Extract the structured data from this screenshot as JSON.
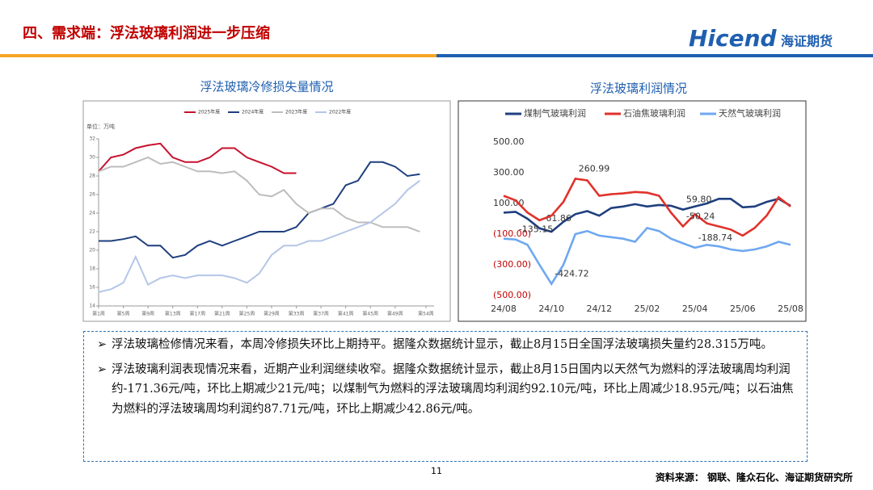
{
  "header": {
    "title": "四、需求端：浮法玻璃利润进一步压缩",
    "logo": "Hicend",
    "logo_cn": "海证期货"
  },
  "chart_data": [
    {
      "type": "line",
      "title": "浮法玻璃冷修损失量情况",
      "unit": "单位：万吨",
      "grid": false,
      "x": [
        1,
        3,
        5,
        7,
        9,
        11,
        13,
        15,
        17,
        19,
        21,
        23,
        25,
        27,
        29,
        31,
        33,
        35,
        37,
        39,
        41,
        43,
        45,
        47,
        49,
        51,
        53
      ],
      "xlim": [
        1,
        54
      ],
      "xticks": [
        {
          "value": 1,
          "label": "第1周"
        },
        {
          "value": 5,
          "label": "第5周"
        },
        {
          "value": 9,
          "label": "第9周"
        },
        {
          "value": 13,
          "label": "第13周"
        },
        {
          "value": 17,
          "label": "第17周"
        },
        {
          "value": 21,
          "label": "第21周"
        },
        {
          "value": 25,
          "label": "第25周"
        },
        {
          "value": 29,
          "label": "第29周"
        },
        {
          "value": 33,
          "label": "第33周"
        },
        {
          "value": 37,
          "label": "第37周"
        },
        {
          "value": 41,
          "label": "第41周"
        },
        {
          "value": 45,
          "label": "第45周"
        },
        {
          "value": 49,
          "label": "第49周"
        },
        {
          "value": 54,
          "label": "第54周"
        }
      ],
      "ylim": [
        14,
        32
      ],
      "yticks": [
        14,
        16,
        18,
        20,
        22,
        24,
        26,
        28,
        30,
        32
      ],
      "series": [
        {
          "name": "2025年度",
          "color": "#c8102e",
          "values": [
            28.5,
            30,
            30.3,
            31,
            31.3,
            31.5,
            30,
            29.5,
            29.5,
            30,
            31,
            31,
            30,
            29.5,
            29,
            28.3,
            28.3,
            null,
            null,
            null,
            null,
            null,
            null,
            null,
            null,
            null,
            null
          ]
        },
        {
          "name": "2024年度",
          "color": "#1f3f7f",
          "values": [
            21,
            21,
            21.2,
            21.5,
            20.5,
            20.5,
            19.2,
            19.5,
            20.5,
            21,
            20.5,
            21,
            21.5,
            22,
            22,
            22,
            22.5,
            24,
            24.5,
            25,
            27,
            27.5,
            29.5,
            29.5,
            29,
            28,
            28.2
          ]
        },
        {
          "name": "2023年度",
          "color": "#bdbdbd",
          "values": [
            28.5,
            29,
            29,
            29.5,
            30,
            29.3,
            29.5,
            29,
            28.5,
            28.5,
            28.3,
            28.5,
            27.5,
            26,
            25.8,
            26.5,
            25,
            24,
            24.5,
            24.5,
            23.5,
            23,
            23,
            22.5,
            22.5,
            22.5,
            22
          ]
        },
        {
          "name": "2022年度",
          "color": "#b4c6e7",
          "values": [
            15.5,
            15.8,
            16.5,
            19.3,
            16.3,
            17,
            17.3,
            17,
            17.3,
            17.3,
            17.3,
            17,
            16.5,
            17.5,
            19.5,
            20.5,
            20.5,
            21,
            21,
            21.5,
            22,
            22.5,
            23,
            24,
            25,
            26.5,
            27.5
          ]
        }
      ]
    },
    {
      "type": "line",
      "title": "浮法玻璃利润情况",
      "grid": false,
      "negative_tick_color": "#c00000",
      "categories": [
        "24/08",
        null,
        null,
        null,
        "24/10",
        null,
        null,
        null,
        "24/12",
        null,
        null,
        null,
        "25/02",
        null,
        null,
        null,
        "25/04",
        null,
        null,
        null,
        "25/06",
        null,
        null,
        null,
        "25/08"
      ],
      "ylim": [
        -500,
        500
      ],
      "yticks": [
        {
          "value": -500,
          "label": "(500.00)"
        },
        {
          "value": -300,
          "label": "(300.00)"
        },
        {
          "value": -100,
          "label": "(100.00)"
        },
        {
          "value": 100,
          "label": "100.00"
        },
        {
          "value": 300,
          "label": "300.00"
        },
        {
          "value": 500,
          "label": "500.00"
        }
      ],
      "series": [
        {
          "name": "煤制气玻璃利润",
          "color": "#1f3f7f",
          "values": [
            40,
            45,
            0,
            -61.86,
            -85,
            -20,
            30,
            50,
            20,
            70,
            80,
            95,
            80,
            90,
            85,
            59.8,
            80,
            100,
            130,
            130,
            75,
            80,
            110,
            130,
            85
          ],
          "value_labels": [
            null,
            null,
            null,
            "-61.86",
            null,
            null,
            null,
            null,
            null,
            null,
            null,
            null,
            null,
            null,
            null,
            "59.80",
            null,
            null,
            null,
            null,
            null,
            null,
            null,
            null,
            null
          ]
        },
        {
          "name": "石油焦玻璃利润",
          "color": "#e0322b",
          "values": [
            150,
            120,
            40,
            -10,
            20,
            110,
            260.99,
            250,
            150,
            160,
            165,
            175,
            170,
            150,
            40,
            -50.24,
            30,
            -30,
            -50,
            -70,
            -110,
            -60,
            20,
            140,
            80
          ],
          "value_labels": [
            null,
            null,
            null,
            null,
            null,
            null,
            "260.99",
            null,
            null,
            null,
            null,
            null,
            null,
            null,
            null,
            "-50.24",
            null,
            null,
            null,
            null,
            null,
            null,
            null,
            null,
            null
          ]
        },
        {
          "name": "天然气玻璃利润",
          "color": "#6fa8f0",
          "values": [
            -130,
            -135.15,
            -170,
            -300,
            -424.72,
            -300,
            -100,
            -80,
            -110,
            -120,
            -130,
            -150,
            -60,
            -80,
            -130,
            -160,
            -188.74,
            -170,
            -180,
            -200,
            -210,
            -200,
            -180,
            -150,
            -170
          ],
          "value_labels": [
            null,
            "-135.15",
            null,
            null,
            "-424.72",
            null,
            null,
            null,
            null,
            null,
            null,
            null,
            null,
            null,
            null,
            null,
            "-188.74",
            null,
            null,
            null,
            null,
            null,
            null,
            null,
            null
          ]
        }
      ]
    }
  ],
  "bullets": [
    "浮法玻璃检修情况来看，本周冷修损失环比上期持平。据隆众数据统计显示，截止8月15日全国浮法玻璃损失量约28.315万吨。",
    "浮法玻璃利润表现情况来看，近期产业利润继续收窄。据隆众数据统计显示，截止8月15日国内以天然气为燃料的浮法玻璃周均利润约-171.36元/吨，环比上期减少21元/吨；以煤制气为燃料的浮法玻璃周均利润约92.10元/吨，环比上周减少18.95元/吨；以石油焦为燃料的浮法玻璃周均利润约87.71元/吨，环比上期减少42.86元/吨。"
  ],
  "footer": {
    "page": "11",
    "source": "资料来源：  钢联、隆众石化、海证期货研究所"
  }
}
